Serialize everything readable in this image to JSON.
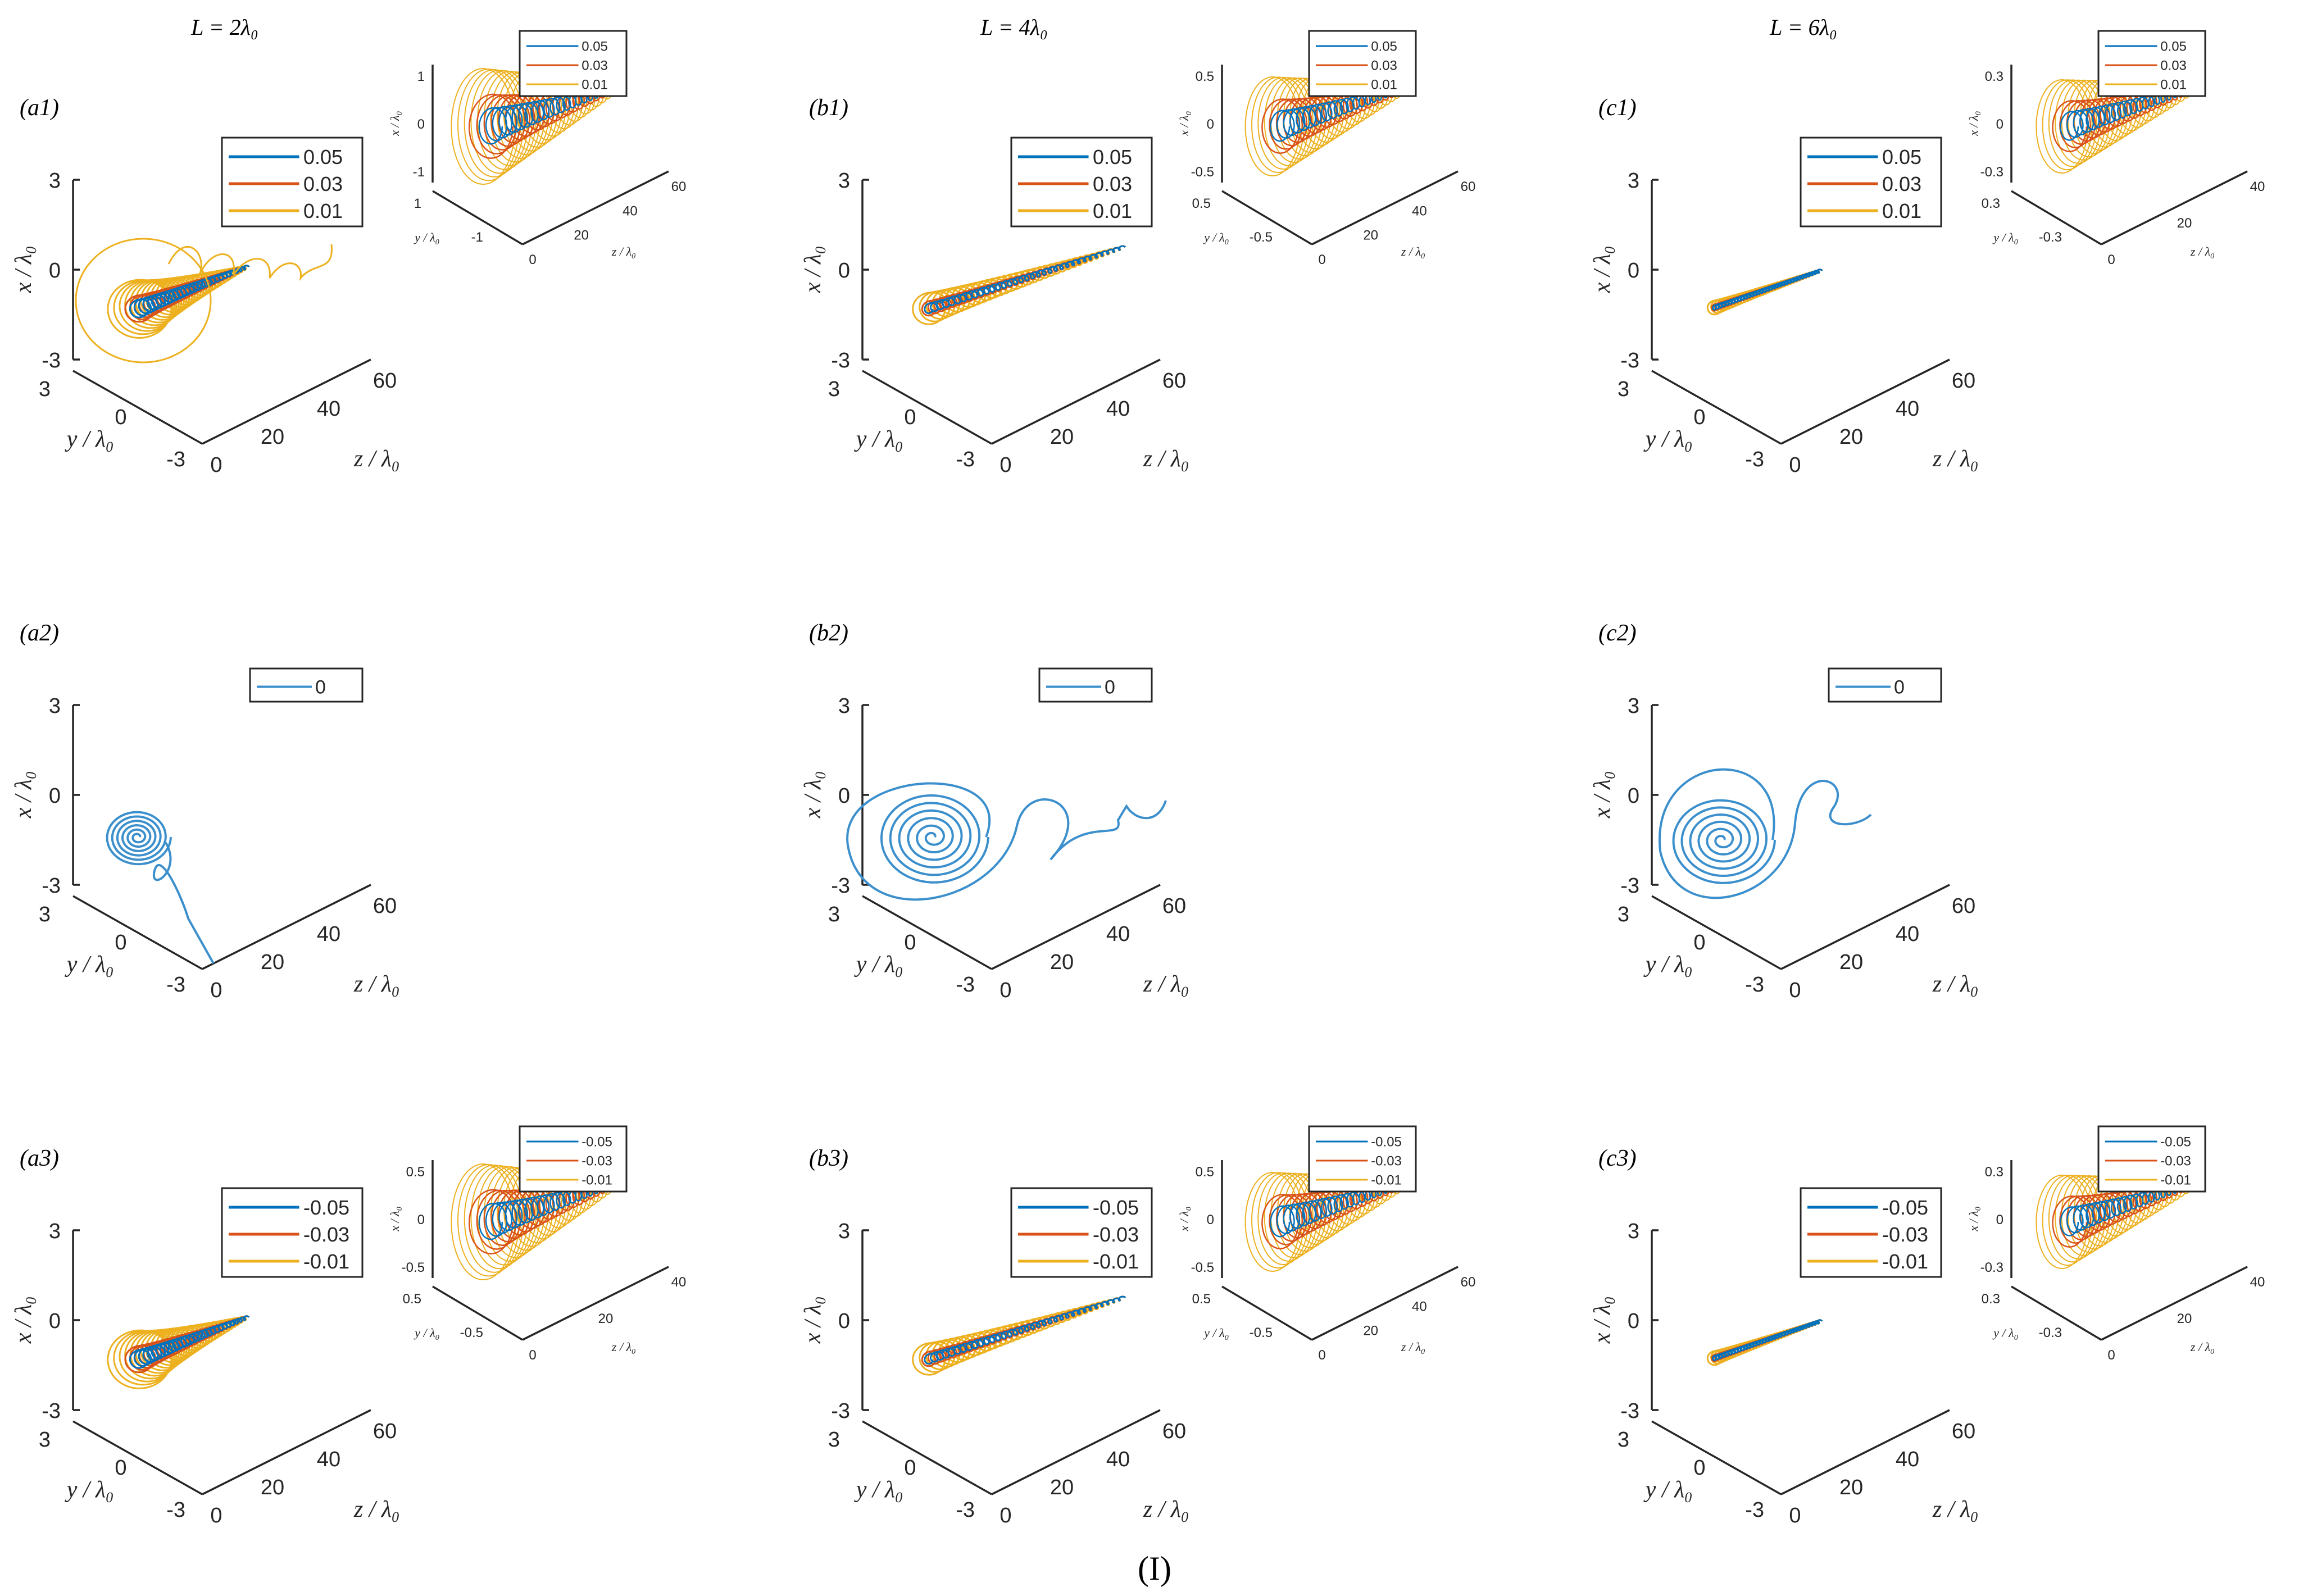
{
  "column_titles": [
    "L = 2λ₀",
    "L = 4λ₀",
    "L = 6λ₀"
  ],
  "figure_label": "(I)",
  "colors": {
    "s005": "#0072BD",
    "s003": "#D95319",
    "s001": "#EDB120",
    "s0": "#3B8FCC",
    "axis": "#262626"
  },
  "axis_labels": {
    "x": "x / λ₀",
    "y": "y / λ₀",
    "z": "z / λ₀"
  },
  "chart_data": [
    {
      "id": "a1",
      "panel_label": "(a1)",
      "type": "line",
      "L": "2λ0",
      "series": [
        {
          "name": "0.05"
        },
        {
          "name": "0.03"
        },
        {
          "name": "0.01"
        }
      ],
      "main": {
        "xticks": [
          "-3",
          "0",
          "3"
        ],
        "yticks": [
          "3",
          "0",
          "-3"
        ],
        "zticks": [
          "0",
          "20",
          "40",
          "60"
        ],
        "xlim": [
          -3,
          3
        ],
        "ylim": [
          -3,
          3
        ],
        "zlim": [
          0,
          60
        ]
      },
      "inset": {
        "xticks": [
          "-1",
          "0",
          "1"
        ],
        "yticks": [
          "1",
          "-1"
        ],
        "zticks": [
          "0",
          "20",
          "40",
          "60"
        ]
      }
    },
    {
      "id": "b1",
      "panel_label": "(b1)",
      "type": "line",
      "L": "4λ0",
      "series": [
        {
          "name": "0.05"
        },
        {
          "name": "0.03"
        },
        {
          "name": "0.01"
        }
      ],
      "main": {
        "xticks": [
          "-3",
          "0",
          "3"
        ],
        "yticks": [
          "3",
          "0",
          "-3"
        ],
        "zticks": [
          "0",
          "20",
          "40",
          "60"
        ],
        "xlim": [
          -3,
          3
        ],
        "ylim": [
          -3,
          3
        ],
        "zlim": [
          0,
          60
        ]
      },
      "inset": {
        "xticks": [
          "-0.5",
          "0",
          "0.5"
        ],
        "yticks": [
          "0.5",
          "-0.5"
        ],
        "zticks": [
          "0",
          "20",
          "40",
          "60"
        ]
      }
    },
    {
      "id": "c1",
      "panel_label": "(c1)",
      "type": "line",
      "L": "6λ0",
      "series": [
        {
          "name": "0.05"
        },
        {
          "name": "0.03"
        },
        {
          "name": "0.01"
        }
      ],
      "main": {
        "xticks": [
          "-3",
          "0",
          "3"
        ],
        "yticks": [
          "3",
          "0",
          "-3"
        ],
        "zticks": [
          "0",
          "20",
          "40",
          "60"
        ],
        "xlim": [
          -3,
          3
        ],
        "ylim": [
          -3,
          3
        ],
        "zlim": [
          0,
          60
        ]
      },
      "inset": {
        "xticks": [
          "-0.3",
          "0",
          "0.3"
        ],
        "yticks": [
          "0.3",
          "-0.3"
        ],
        "zticks": [
          "0",
          "20",
          "40"
        ]
      }
    },
    {
      "id": "a2",
      "panel_label": "(a2)",
      "type": "line",
      "L": "2λ0",
      "series": [
        {
          "name": "0"
        }
      ],
      "main": {
        "xticks": [
          "-3",
          "0",
          "3"
        ],
        "yticks": [
          "3",
          "0",
          "-3"
        ],
        "zticks": [
          "0",
          "20",
          "40",
          "60"
        ],
        "xlim": [
          -3,
          3
        ],
        "ylim": [
          -3,
          3
        ],
        "zlim": [
          0,
          60
        ]
      }
    },
    {
      "id": "b2",
      "panel_label": "(b2)",
      "type": "line",
      "L": "4λ0",
      "series": [
        {
          "name": "0"
        }
      ],
      "main": {
        "xticks": [
          "-3",
          "0",
          "3"
        ],
        "yticks": [
          "3",
          "0",
          "-3"
        ],
        "zticks": [
          "0",
          "20",
          "40",
          "60"
        ],
        "xlim": [
          -3,
          3
        ],
        "ylim": [
          -3,
          3
        ],
        "zlim": [
          0,
          60
        ]
      }
    },
    {
      "id": "c2",
      "panel_label": "(c2)",
      "type": "line",
      "L": "6λ0",
      "series": [
        {
          "name": "0"
        }
      ],
      "main": {
        "xticks": [
          "-3",
          "0",
          "3"
        ],
        "yticks": [
          "3",
          "0",
          "-3"
        ],
        "zticks": [
          "0",
          "20",
          "40",
          "60"
        ],
        "xlim": [
          -3,
          3
        ],
        "ylim": [
          -3,
          3
        ],
        "zlim": [
          0,
          60
        ]
      }
    },
    {
      "id": "a3",
      "panel_label": "(a3)",
      "type": "line",
      "L": "2λ0",
      "series": [
        {
          "name": "-0.05"
        },
        {
          "name": "-0.03"
        },
        {
          "name": "-0.01"
        }
      ],
      "main": {
        "xticks": [
          "-3",
          "0",
          "3"
        ],
        "yticks": [
          "3",
          "0",
          "-3"
        ],
        "zticks": [
          "0",
          "20",
          "40",
          "60"
        ],
        "xlim": [
          -3,
          3
        ],
        "ylim": [
          -3,
          3
        ],
        "zlim": [
          0,
          60
        ]
      },
      "inset": {
        "xticks": [
          "-0.5",
          "0",
          "0.5"
        ],
        "yticks": [
          "0.5",
          "-0.5"
        ],
        "zticks": [
          "0",
          "20",
          "40"
        ]
      }
    },
    {
      "id": "b3",
      "panel_label": "(b3)",
      "type": "line",
      "L": "4λ0",
      "series": [
        {
          "name": "-0.05"
        },
        {
          "name": "-0.03"
        },
        {
          "name": "-0.01"
        }
      ],
      "main": {
        "xticks": [
          "-3",
          "0",
          "3"
        ],
        "yticks": [
          "3",
          "0",
          "-3"
        ],
        "zticks": [
          "0",
          "20",
          "40",
          "60"
        ],
        "xlim": [
          -3,
          3
        ],
        "ylim": [
          -3,
          3
        ],
        "zlim": [
          0,
          60
        ]
      },
      "inset": {
        "xticks": [
          "-0.5",
          "0",
          "0.5"
        ],
        "yticks": [
          "0.5",
          "-0.5"
        ],
        "zticks": [
          "0",
          "20",
          "40",
          "60"
        ]
      }
    },
    {
      "id": "c3",
      "panel_label": "(c3)",
      "type": "line",
      "L": "6λ0",
      "series": [
        {
          "name": "-0.05"
        },
        {
          "name": "-0.03"
        },
        {
          "name": "-0.01"
        }
      ],
      "main": {
        "xticks": [
          "-3",
          "0",
          "3"
        ],
        "yticks": [
          "3",
          "0",
          "-3"
        ],
        "zticks": [
          "0",
          "20",
          "40",
          "60"
        ],
        "xlim": [
          -3,
          3
        ],
        "ylim": [
          -3,
          3
        ],
        "zlim": [
          0,
          60
        ]
      },
      "inset": {
        "xticks": [
          "-0.3",
          "0",
          "0.3"
        ],
        "yticks": [
          "0.3",
          "-0.3"
        ],
        "zticks": [
          "0",
          "20",
          "40"
        ]
      }
    }
  ]
}
